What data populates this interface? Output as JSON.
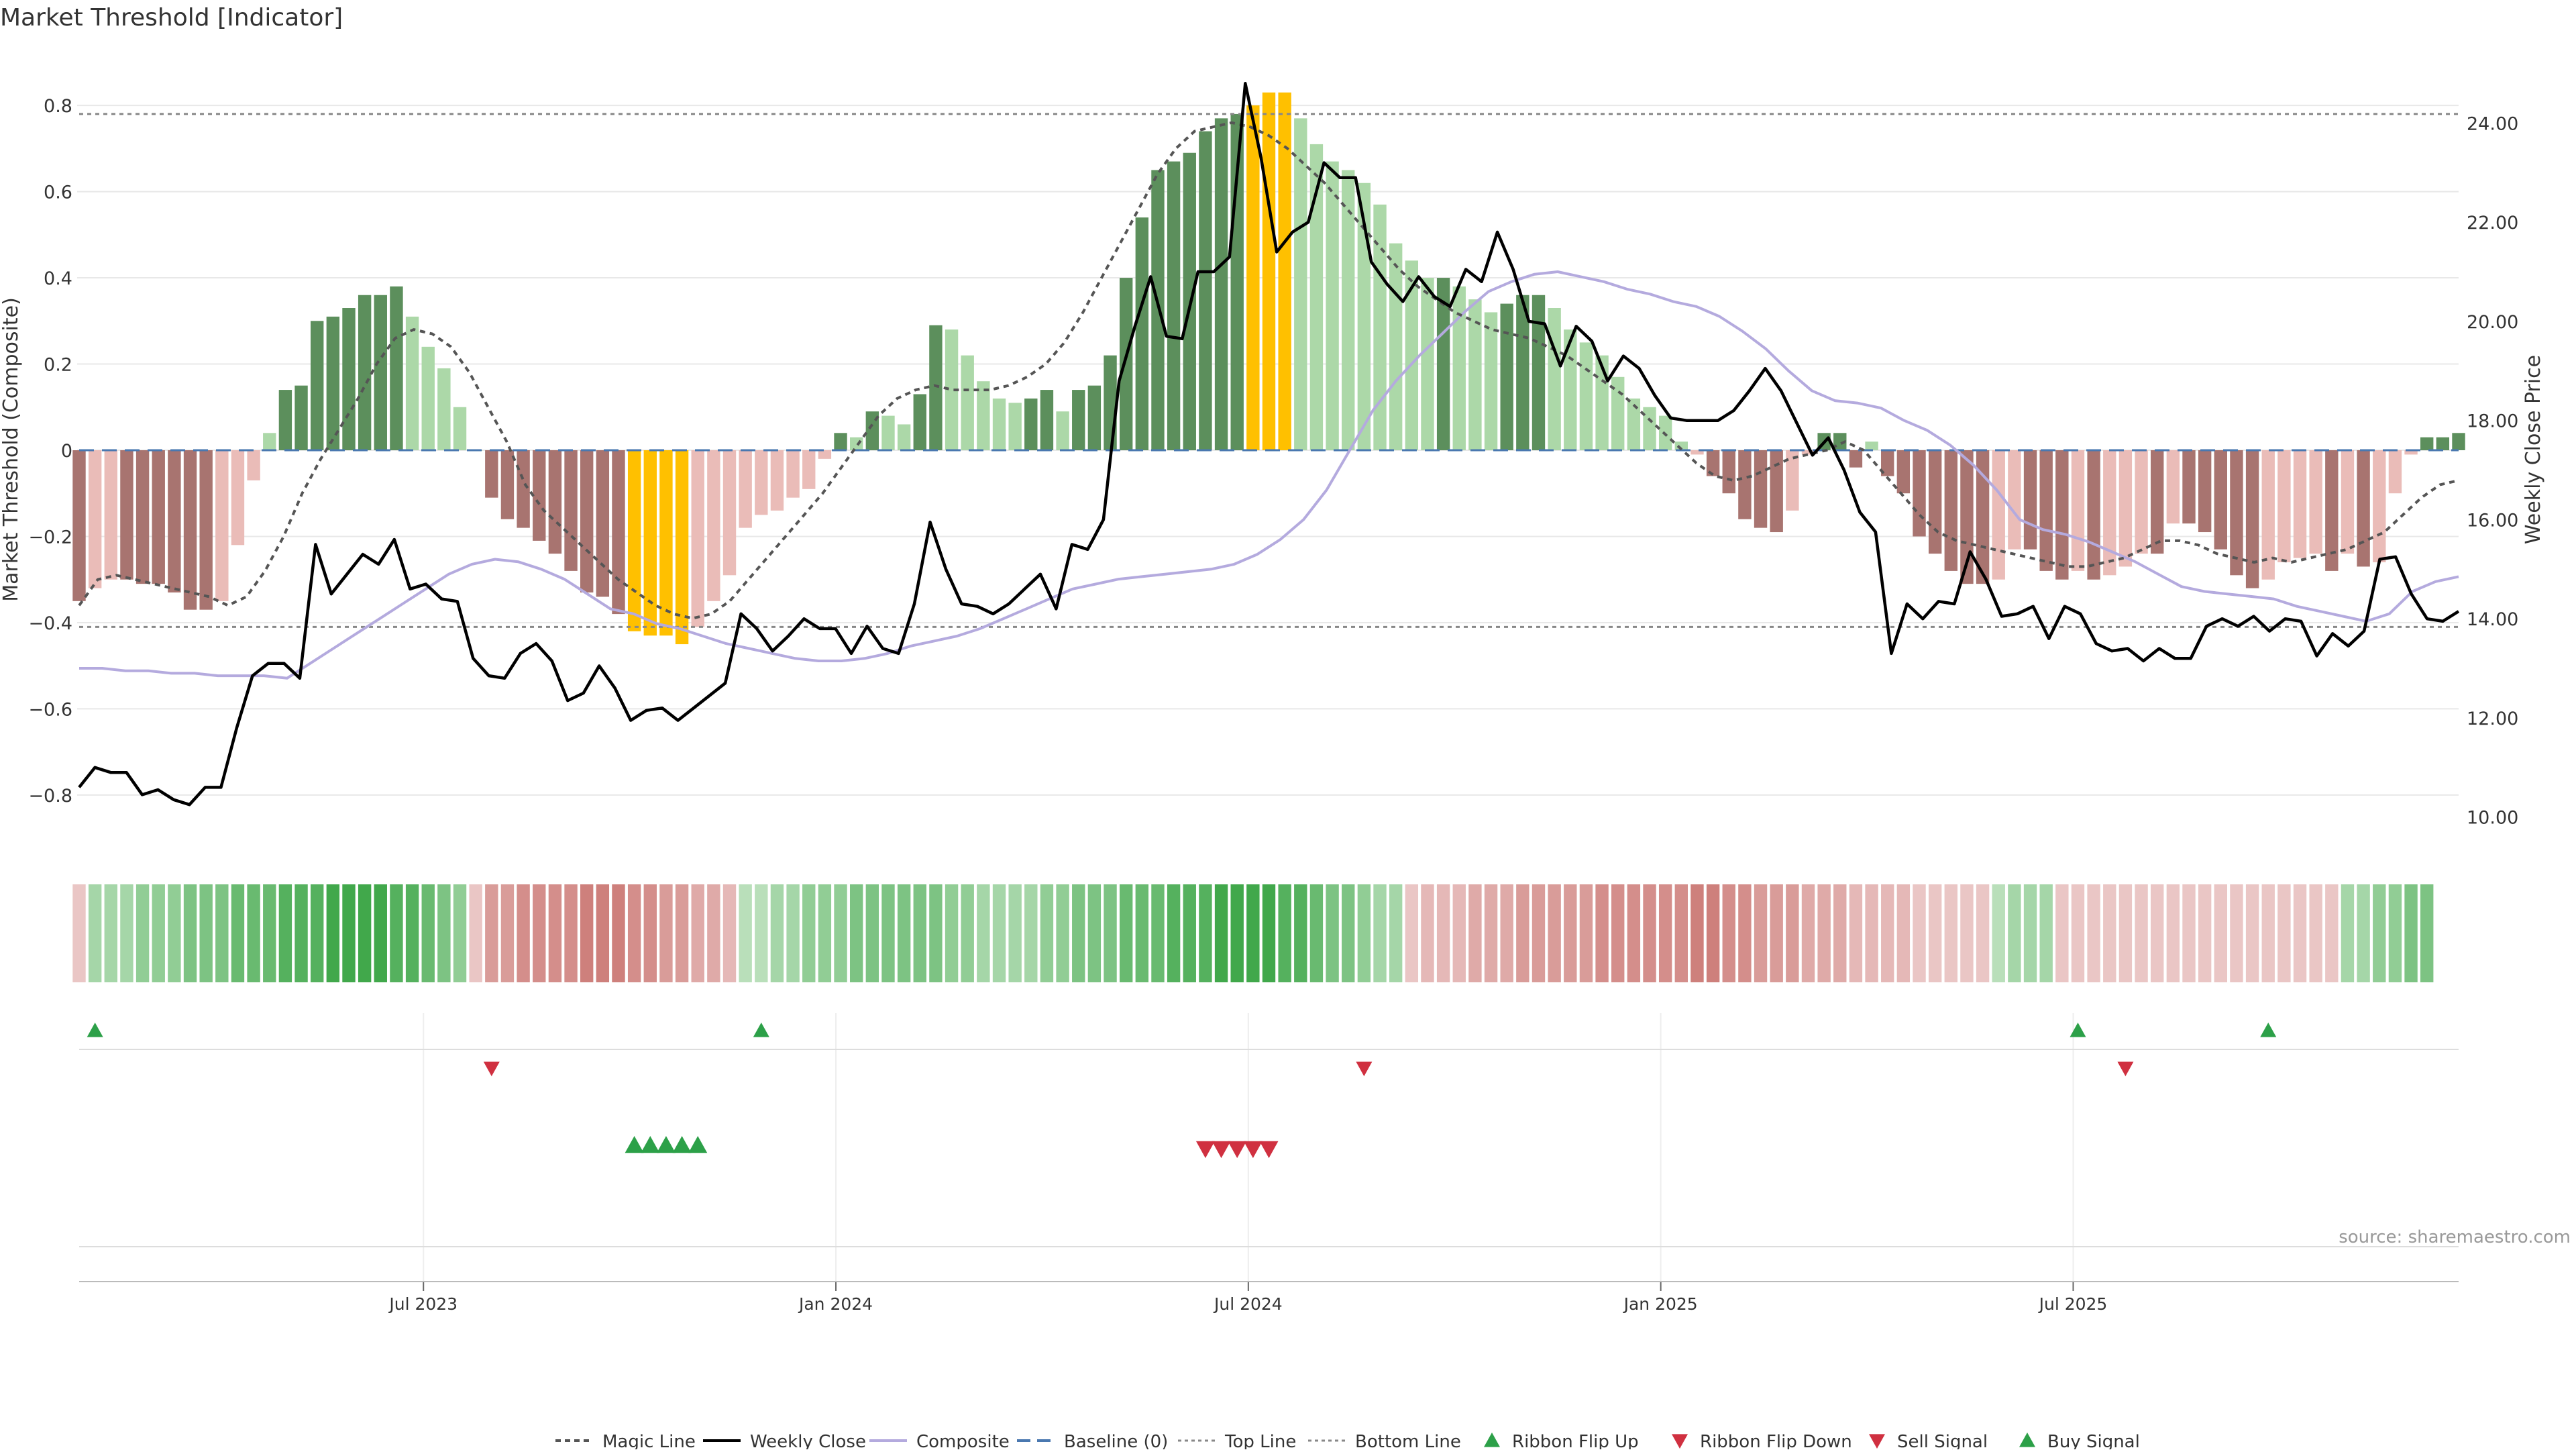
{
  "chart_data": {
    "type": "bar",
    "title": "Market Threshold [Indicator]",
    "ylabel_left": "Market Threshold (Composite)",
    "ylabel_right": "Weekly Close Price",
    "source": "source: sharemaestro.com",
    "left_ticks": [
      "0.8",
      "0.6",
      "0.4",
      "0.2",
      "0",
      "−0.2",
      "−0.4",
      "−0.6",
      "−0.8"
    ],
    "right_ticks": [
      "24.00",
      "22.00",
      "20.00",
      "18.00",
      "16.00",
      "14.00",
      "12.00",
      "10.00"
    ],
    "x_ticks": [
      "Jul 2023",
      "Jan 2024",
      "Jul 2024",
      "Jan 2025",
      "Jul 2025"
    ],
    "ylim_left": [
      -0.92,
      0.92
    ],
    "ylim_right": [
      9.4,
      25.4
    ],
    "top_line": 0.78,
    "bottom_line": -0.41,
    "colors": {
      "weekly_close": "#000000",
      "composite": "#b4aade",
      "magic_line": "#555555",
      "baseline": "#4a78b0",
      "threshold_lines": "#888888",
      "extreme": "#ffc000",
      "pos_strong": "#5c8f5c",
      "pos_weak": "#acd8a8",
      "neg_strong": "#a87470",
      "neg_weak": "#eabcb8",
      "buy": "#2ca048",
      "sell": "#d03040",
      "grid": "#e8e8e8"
    },
    "composite": [
      -0.35,
      -0.32,
      -0.3,
      -0.3,
      -0.31,
      -0.31,
      -0.33,
      -0.37,
      -0.37,
      -0.35,
      -0.22,
      -0.07,
      0.04,
      0.14,
      0.15,
      0.3,
      0.31,
      0.33,
      0.36,
      0.36,
      0.38,
      0.31,
      0.24,
      0.19,
      0.1,
      0.0,
      -0.11,
      -0.16,
      -0.18,
      -0.21,
      -0.24,
      -0.28,
      -0.33,
      -0.34,
      -0.38,
      -0.42,
      -0.43,
      -0.43,
      -0.45,
      -0.41,
      -0.35,
      -0.29,
      -0.18,
      -0.15,
      -0.14,
      -0.11,
      -0.09,
      -0.02,
      0.04,
      0.03,
      0.09,
      0.08,
      0.06,
      0.13,
      0.29,
      0.28,
      0.22,
      0.16,
      0.12,
      0.11,
      0.12,
      0.14,
      0.09,
      0.14,
      0.15,
      0.22,
      0.4,
      0.54,
      0.65,
      0.67,
      0.69,
      0.74,
      0.77,
      0.78,
      0.8,
      0.83,
      0.83,
      0.77,
      0.71,
      0.67,
      0.65,
      0.62,
      0.57,
      0.48,
      0.44,
      0.4,
      0.4,
      0.38,
      0.35,
      0.32,
      0.34,
      0.36,
      0.36,
      0.33,
      0.28,
      0.25,
      0.22,
      0.17,
      0.12,
      0.1,
      0.08,
      0.02,
      -0.01,
      -0.06,
      -0.1,
      -0.16,
      -0.18,
      -0.19,
      -0.14,
      -0.01,
      0.04,
      0.04,
      -0.04,
      0.02,
      -0.06,
      -0.1,
      -0.2,
      -0.24,
      -0.28,
      -0.31,
      -0.31,
      -0.3,
      -0.23,
      -0.23,
      -0.28,
      -0.3,
      -0.28,
      -0.3,
      -0.29,
      -0.27,
      -0.24,
      -0.24,
      -0.17,
      -0.17,
      -0.19,
      -0.23,
      -0.29,
      -0.32,
      -0.3,
      -0.26,
      -0.25,
      -0.24,
      -0.28,
      -0.24,
      -0.27,
      -0.26,
      -0.1,
      -0.01,
      0.03,
      0.03,
      0.04
    ],
    "magic_line": [
      -0.36,
      -0.3,
      -0.29,
      -0.3,
      -0.31,
      -0.32,
      -0.33,
      -0.34,
      -0.36,
      -0.34,
      -0.28,
      -0.2,
      -0.1,
      -0.02,
      0.05,
      0.12,
      0.2,
      0.26,
      0.28,
      0.27,
      0.24,
      0.18,
      0.1,
      0.02,
      -0.08,
      -0.14,
      -0.18,
      -0.22,
      -0.26,
      -0.3,
      -0.33,
      -0.36,
      -0.38,
      -0.39,
      -0.38,
      -0.35,
      -0.3,
      -0.25,
      -0.2,
      -0.15,
      -0.1,
      -0.04,
      0.02,
      0.08,
      0.12,
      0.14,
      0.15,
      0.14,
      0.14,
      0.14,
      0.15,
      0.17,
      0.2,
      0.25,
      0.32,
      0.4,
      0.48,
      0.56,
      0.64,
      0.7,
      0.74,
      0.75,
      0.76,
      0.75,
      0.73,
      0.7,
      0.66,
      0.62,
      0.57,
      0.52,
      0.47,
      0.42,
      0.38,
      0.35,
      0.32,
      0.3,
      0.28,
      0.27,
      0.26,
      0.24,
      0.22,
      0.19,
      0.16,
      0.13,
      0.09,
      0.05,
      0.01,
      -0.03,
      -0.06,
      -0.07,
      -0.06,
      -0.04,
      -0.02,
      -0.01,
      0.0,
      0.02,
      0.0,
      -0.05,
      -0.1,
      -0.15,
      -0.19,
      -0.21,
      -0.22,
      -0.23,
      -0.24,
      -0.25,
      -0.26,
      -0.27,
      -0.27,
      -0.26,
      -0.25,
      -0.23,
      -0.21,
      -0.21,
      -0.22,
      -0.24,
      -0.25,
      -0.26,
      -0.25,
      -0.26,
      -0.25,
      -0.24,
      -0.23,
      -0.21,
      -0.19,
      -0.15,
      -0.11,
      -0.08,
      -0.07
    ],
    "weekly_close": [
      10.6,
      11.0,
      10.9,
      10.9,
      10.45,
      10.55,
      10.35,
      10.25,
      10.6,
      10.6,
      11.8,
      12.85,
      13.1,
      13.1,
      12.8,
      15.5,
      14.5,
      14.9,
      15.3,
      15.1,
      15.6,
      14.6,
      14.7,
      14.4,
      14.35,
      13.2,
      12.85,
      12.8,
      13.3,
      13.5,
      13.15,
      12.35,
      12.5,
      13.05,
      12.6,
      11.95,
      12.15,
      12.2,
      11.95,
      12.2,
      12.45,
      12.7,
      14.1,
      13.8,
      13.35,
      13.65,
      14.0,
      13.8,
      13.8,
      13.3,
      13.85,
      13.4,
      13.3,
      14.3,
      15.95,
      15.0,
      14.3,
      14.25,
      14.1,
      14.3,
      14.6,
      14.9,
      14.2,
      15.5,
      15.4,
      16.0,
      18.8,
      19.9,
      20.9,
      19.7,
      19.65,
      21.0,
      21.0,
      21.3,
      24.8,
      23.3,
      21.4,
      21.8,
      22.0,
      23.2,
      22.9,
      22.9,
      21.2,
      20.75,
      20.4,
      20.9,
      20.5,
      20.3,
      21.05,
      20.8,
      21.8,
      21.05,
      20.0,
      19.95,
      19.1,
      19.9,
      19.6,
      18.8,
      19.3,
      19.05,
      18.5,
      18.05,
      18.0,
      18.0,
      18.0,
      18.2,
      18.6,
      19.05,
      18.6,
      17.95,
      17.3,
      17.65,
      17.0,
      16.15,
      15.75,
      13.3,
      14.3,
      14.0,
      14.35,
      14.3,
      15.35,
      14.8,
      14.05,
      14.1,
      14.25,
      13.6,
      14.25,
      14.1,
      13.5,
      13.35,
      13.4,
      13.15,
      13.4,
      13.2,
      13.2,
      13.85,
      14.0,
      13.85,
      14.05,
      13.75,
      14.0,
      13.95,
      13.25,
      13.7,
      13.45,
      13.75,
      15.2,
      15.25,
      14.5,
      14.0,
      13.95,
      14.15
    ],
    "composite_line_weekly": [
      13.0,
      13.0,
      12.95,
      12.95,
      12.9,
      12.9,
      12.85,
      12.85,
      12.85,
      12.8,
      13.1,
      13.4,
      13.7,
      14.0,
      14.3,
      14.6,
      14.9,
      15.1,
      15.2,
      15.15,
      15.0,
      14.8,
      14.5,
      14.2,
      14.1,
      13.9,
      13.8,
      13.65,
      13.5,
      13.4,
      13.3,
      13.2,
      13.15,
      13.15,
      13.2,
      13.3,
      13.45,
      13.55,
      13.65,
      13.8,
      14.0,
      14.2,
      14.4,
      14.6,
      14.7,
      14.8,
      14.85,
      14.9,
      14.95,
      15.0,
      15.1,
      15.3,
      15.6,
      16.0,
      16.6,
      17.4,
      18.2,
      18.8,
      19.3,
      19.75,
      20.2,
      20.6,
      20.8,
      20.95,
      21.0,
      20.9,
      20.8,
      20.65,
      20.55,
      20.4,
      20.3,
      20.1,
      19.8,
      19.45,
      19.0,
      18.6,
      18.4,
      18.35,
      18.25,
      18.0,
      17.8,
      17.5,
      17.1,
      16.6,
      16.0,
      15.8,
      15.7,
      15.55,
      15.35,
      15.15,
      14.9,
      14.65,
      14.55,
      14.5,
      14.45,
      14.4,
      14.25,
      14.15,
      14.05,
      13.95,
      14.1,
      14.55,
      14.75,
      14.85
    ],
    "ribbon": [
      -1,
      2,
      2,
      2,
      3,
      3,
      3,
      4,
      4,
      4,
      5,
      5,
      5,
      6,
      6,
      6,
      7,
      7,
      7,
      7,
      6,
      6,
      5,
      4,
      3,
      -1,
      -4,
      -4,
      -5,
      -5,
      -5,
      -5,
      -6,
      -6,
      -6,
      -5,
      -5,
      -4,
      -4,
      -3,
      -3,
      -2,
      1,
      1,
      2,
      2,
      3,
      3,
      3,
      4,
      4,
      4,
      4,
      4,
      4,
      3,
      3,
      2,
      2,
      2,
      2,
      3,
      3,
      4,
      4,
      4,
      5,
      5,
      5,
      6,
      6,
      6,
      7,
      7,
      7,
      7,
      6,
      6,
      5,
      4,
      4,
      3,
      2,
      2,
      -1,
      -2,
      -2,
      -2,
      -3,
      -3,
      -3,
      -4,
      -4,
      -4,
      -4,
      -4,
      -5,
      -5,
      -5,
      -5,
      -5,
      -5,
      -6,
      -6,
      -5,
      -5,
      -4,
      -4,
      -4,
      -3,
      -3,
      -3,
      -2,
      -2,
      -2,
      -2,
      -1,
      -1,
      -1,
      -1,
      -1,
      1,
      2,
      2,
      2,
      -1,
      -1,
      -1,
      -1,
      -1,
      -1,
      -1,
      -1,
      -1,
      -1,
      -1,
      -1,
      -1,
      -1,
      -1,
      -1,
      -1,
      -1,
      2,
      2,
      3,
      3,
      4,
      4
    ],
    "ribbon_flip_up": [
      1,
      43,
      126,
      138
    ],
    "ribbon_flip_down": [
      26,
      81,
      129
    ],
    "buy_signal": [
      35,
      36,
      37,
      38,
      39
    ],
    "sell_signal": [
      71,
      72,
      73,
      74,
      75
    ],
    "legend": [
      "Magic Line",
      "Weekly Close",
      "Composite",
      "Baseline (0)",
      "Top Line",
      "Bottom Line",
      "Ribbon Flip Up",
      "Ribbon Flip Down",
      "Sell Signal",
      "Buy Signal"
    ]
  }
}
